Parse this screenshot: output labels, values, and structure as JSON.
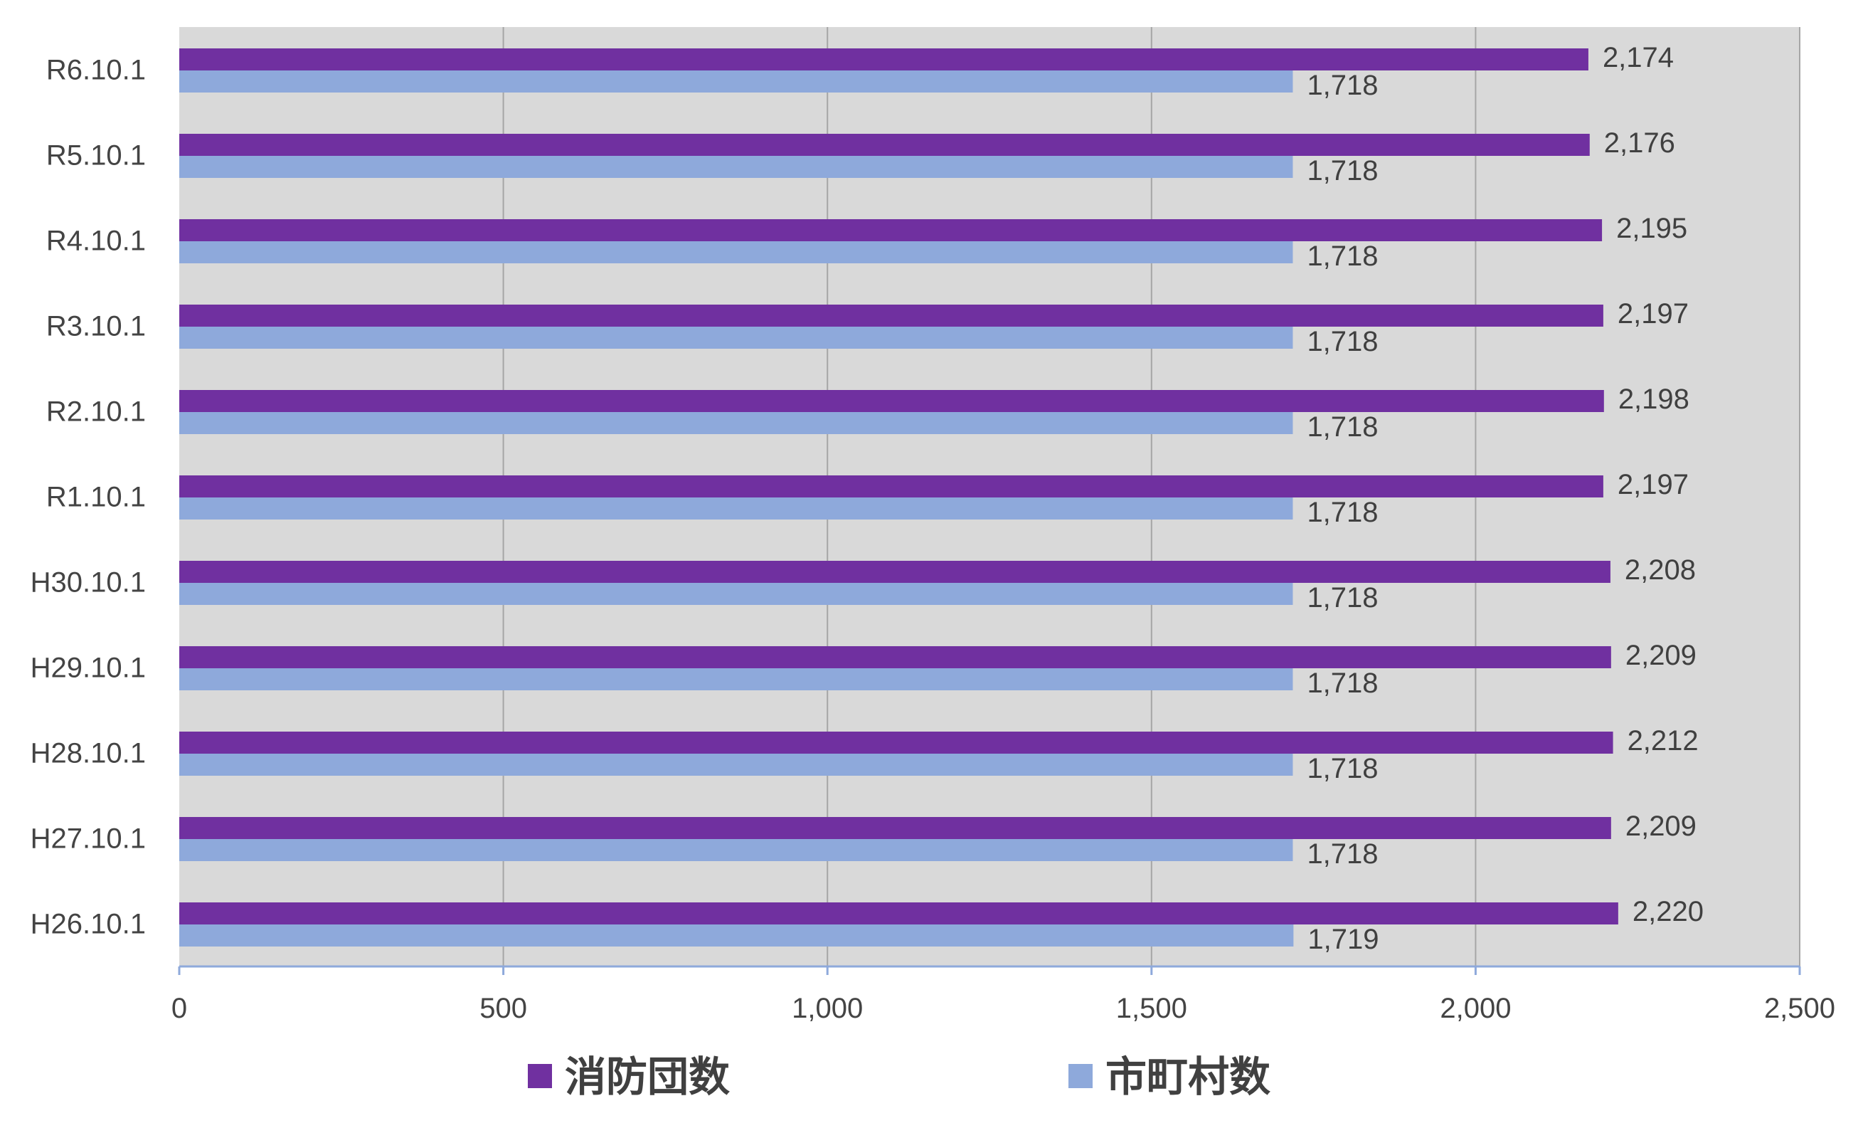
{
  "chart_data": {
    "type": "bar",
    "orientation": "horizontal",
    "title": "",
    "xlabel": "",
    "ylabel": "",
    "xlim": [
      0,
      2500
    ],
    "x_ticks": [
      0,
      500,
      1000,
      1500,
      2000,
      2500
    ],
    "x_tick_labels": [
      "0",
      "500",
      "1,000",
      "1,500",
      "2,000",
      "2,500"
    ],
    "grid": "vertical",
    "legend_position": "bottom",
    "categories": [
      "R6.10.1",
      "R5.10.1",
      "R4.10.1",
      "R3.10.1",
      "R2.10.1",
      "R1.10.1",
      "H30.10.1",
      "H29.10.1",
      "H28.10.1",
      "H27.10.1",
      "H26.10.1"
    ],
    "series": [
      {
        "name": "消防団数",
        "color": "#7030A0",
        "values": [
          2174,
          2176,
          2195,
          2197,
          2198,
          2197,
          2208,
          2209,
          2212,
          2209,
          2220
        ],
        "labels": [
          "2,174",
          "2,176",
          "2,195",
          "2,197",
          "2,198",
          "2,197",
          "2,208",
          "2,209",
          "2,212",
          "2,209",
          "2,220"
        ]
      },
      {
        "name": "市町村数",
        "color": "#8EA9DB",
        "values": [
          1718,
          1718,
          1718,
          1718,
          1718,
          1718,
          1718,
          1718,
          1718,
          1718,
          1719
        ],
        "labels": [
          "1,718",
          "1,718",
          "1,718",
          "1,718",
          "1,718",
          "1,718",
          "1,718",
          "1,718",
          "1,718",
          "1,718",
          "1,719"
        ]
      }
    ],
    "plot_background": "#D9D9D9",
    "gridline_color": "#A6A6A6",
    "axis_color": "#8EA9DB"
  }
}
